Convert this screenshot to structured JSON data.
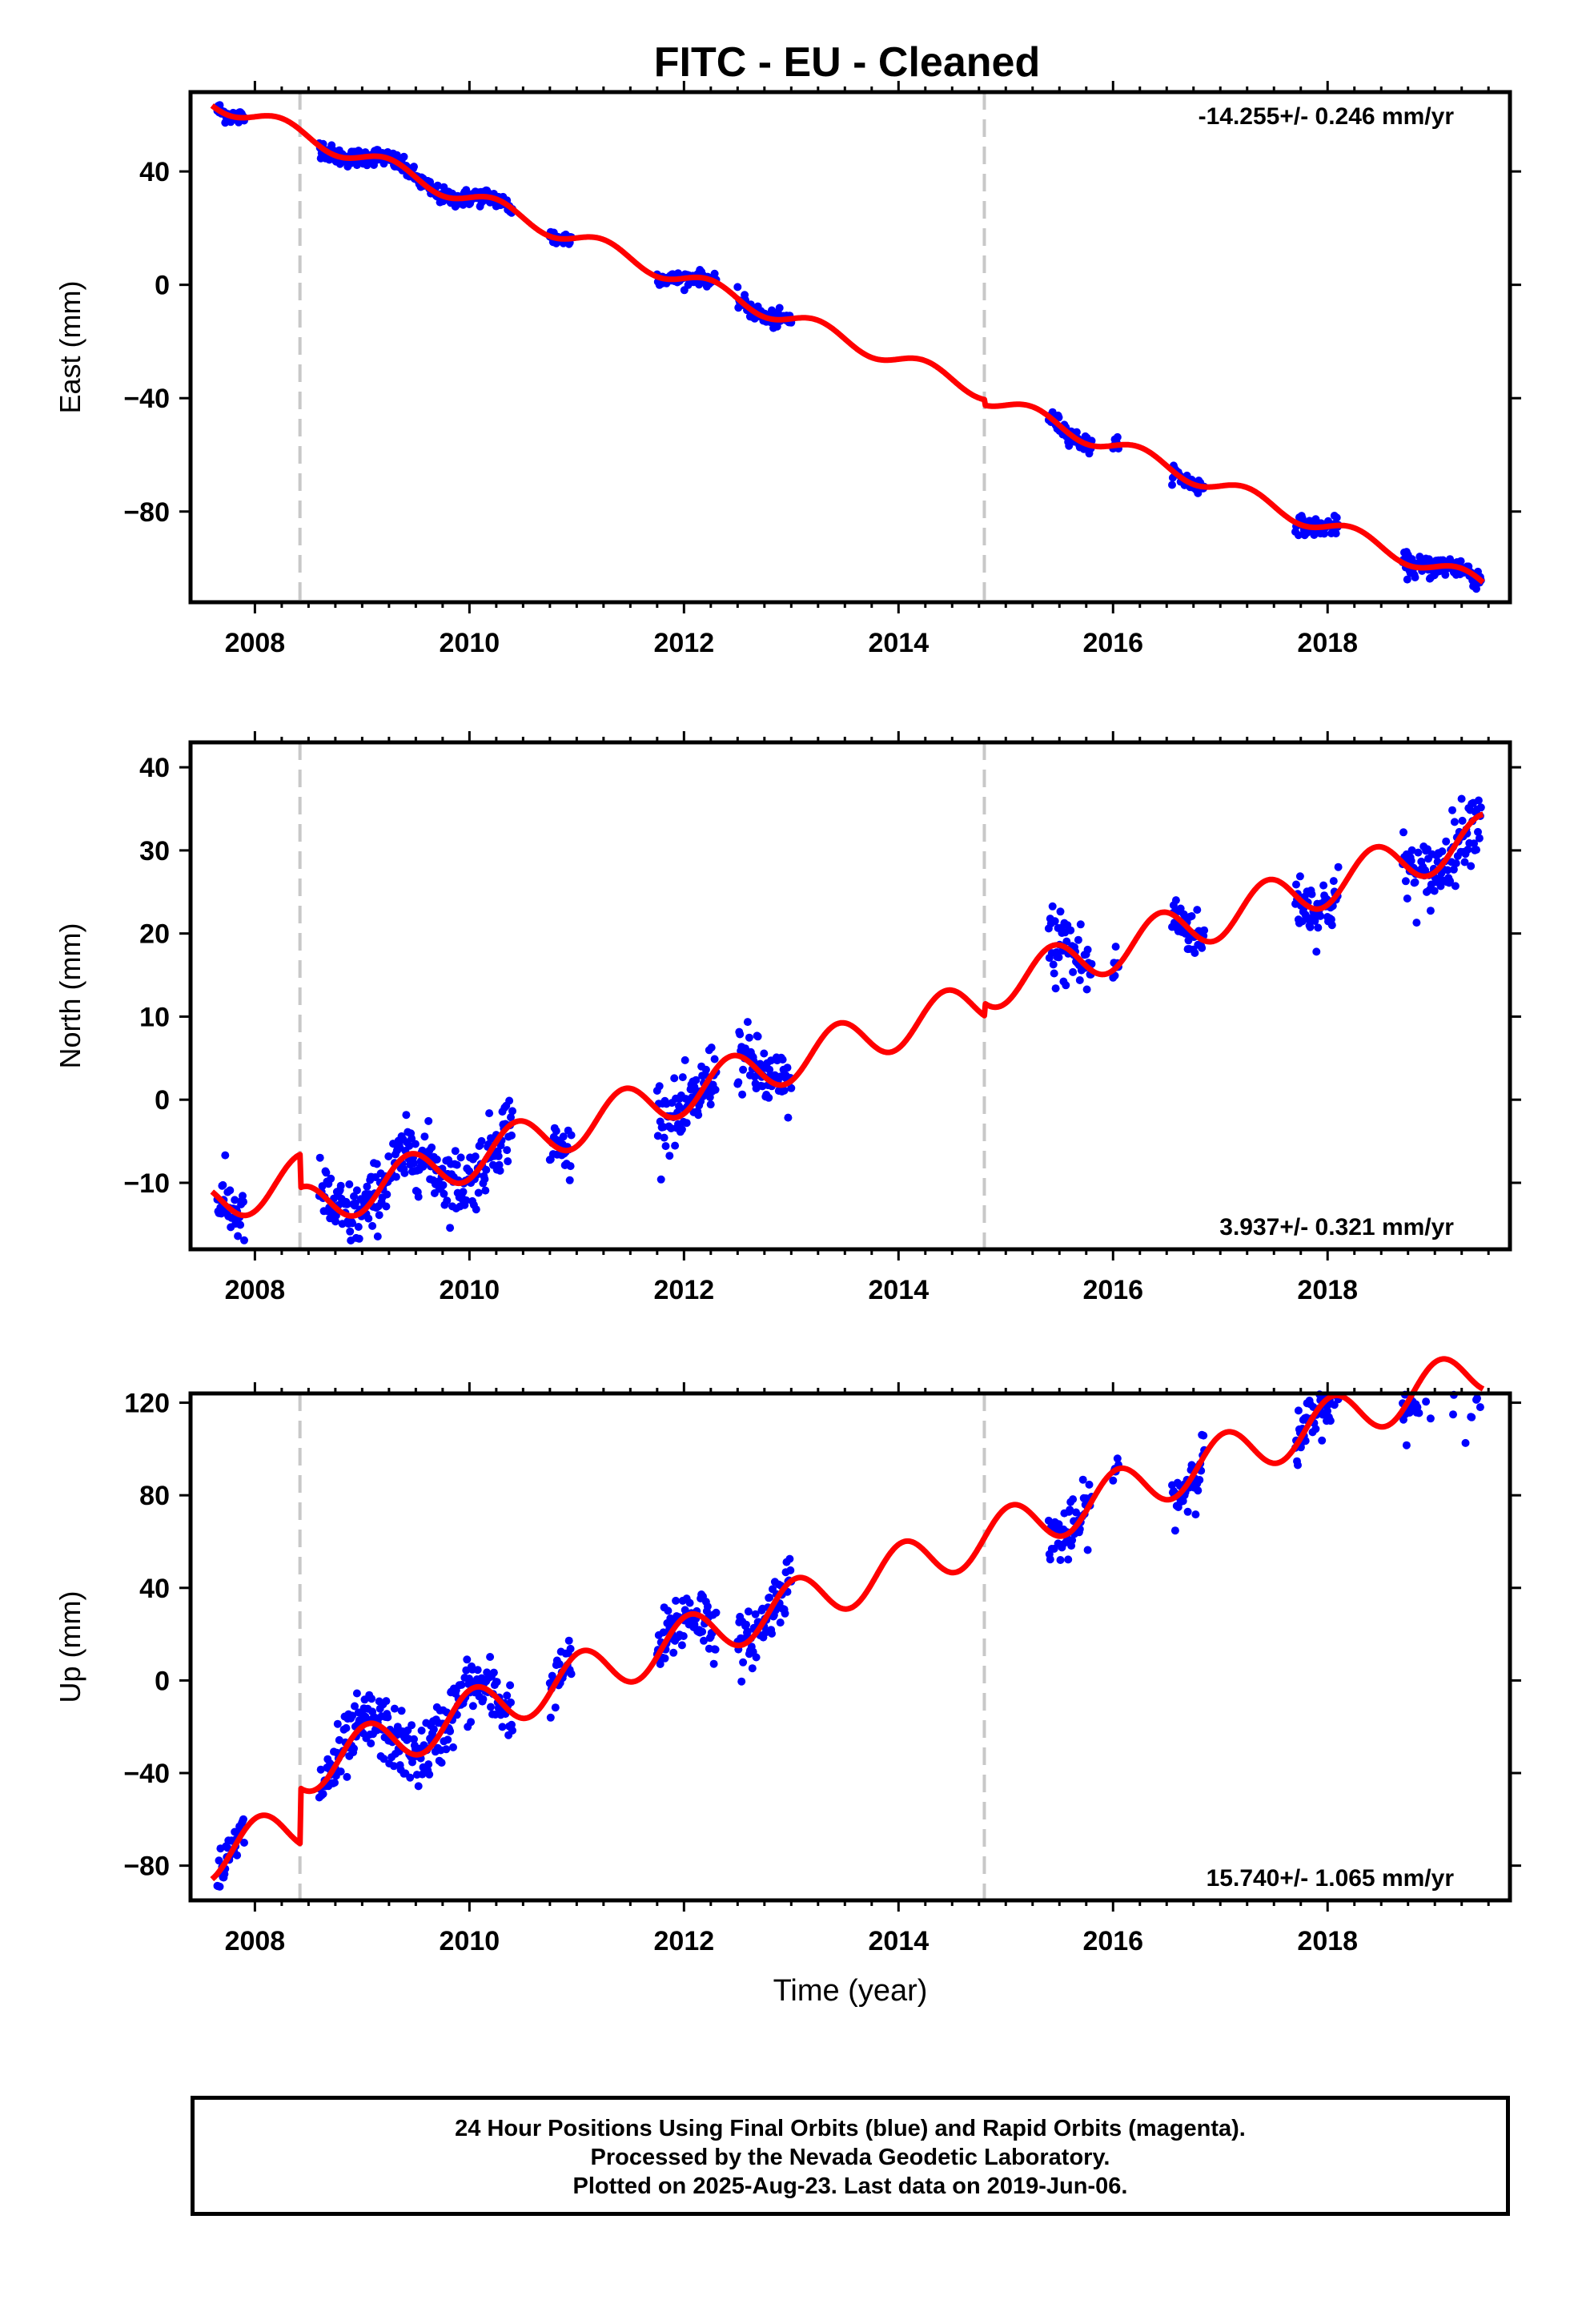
{
  "title": "FITC  - EU - Cleaned",
  "footer": {
    "line1": "24 Hour Positions Using Final Orbits (blue) and Rapid Orbits (magenta).",
    "line2": "Processed by the Nevada Geodetic Laboratory.",
    "line3": "Plotted on 2025-Aug-23. Last data on 2019-Jun-06."
  },
  "colors": {
    "data": "#0000ff",
    "model": "#ff0000",
    "break_line": "#c8c8c8"
  },
  "chart_data": [
    {
      "type": "scatter",
      "ylabel": "East (mm)",
      "xlim": [
        2007.4,
        2019.7
      ],
      "ylim": [
        -112,
        68
      ],
      "x_ticks": [
        2008,
        2010,
        2012,
        2014,
        2016,
        2018
      ],
      "y_ticks": [
        -80,
        -40,
        0,
        40
      ],
      "tick_labels_x": [
        "2008",
        "2010",
        "2012",
        "2014",
        "2016",
        "2018"
      ],
      "tick_labels_y": [
        "−80",
        "−40",
        "0",
        "40"
      ],
      "rate_label": "-14.255+/- 0.246 mm/yr",
      "rate_position": "top-right",
      "vertical_breaks": [
        2008.42,
        2014.8
      ],
      "model": {
        "offset": 65,
        "rate": -14.255,
        "t0": 2007.6,
        "amp_sin": 3.0,
        "amp_cos": 0.0,
        "steps": [
          {
            "t": 2008.42,
            "dy": 0
          },
          {
            "t": 2014.8,
            "dy": -2
          }
        ]
      },
      "data_segments": [
        {
          "start": 2007.65,
          "end": 2007.9,
          "noise": 1.5
        },
        {
          "start": 2008.6,
          "end": 2010.4,
          "noise": 1.5
        },
        {
          "start": 2010.75,
          "end": 2010.95,
          "noise": 1.5
        },
        {
          "start": 2011.75,
          "end": 2012.3,
          "noise": 1.2
        },
        {
          "start": 2012.5,
          "end": 2013.0,
          "noise": 1.5
        },
        {
          "start": 2015.4,
          "end": 2015.8,
          "noise": 1.5
        },
        {
          "start": 2016.0,
          "end": 2016.05,
          "noise": 1.2
        },
        {
          "start": 2016.55,
          "end": 2016.85,
          "noise": 1.5
        },
        {
          "start": 2017.7,
          "end": 2018.1,
          "noise": 1.5
        },
        {
          "start": 2018.7,
          "end": 2019.43,
          "noise": 2.0
        }
      ]
    },
    {
      "type": "scatter",
      "ylabel": "North (mm)",
      "xlim": [
        2007.4,
        2019.7
      ],
      "ylim": [
        -18,
        43
      ],
      "x_ticks": [
        2008,
        2010,
        2012,
        2014,
        2016,
        2018
      ],
      "y_ticks": [
        -10,
        0,
        10,
        20,
        30,
        40
      ],
      "tick_labels_x": [
        "2008",
        "2010",
        "2012",
        "2014",
        "2016",
        "2018"
      ],
      "tick_labels_y": [
        "−10",
        "0",
        "10",
        "20",
        "30",
        "40"
      ],
      "rate_label": "3.937+/- 0.321 mm/yr",
      "rate_position": "bottom-right",
      "vertical_breaks": [
        2008.42,
        2014.8
      ],
      "model": {
        "offset": -12.5,
        "rate": 3.937,
        "t0": 2007.6,
        "amp_sin": 1.0,
        "amp_cos": -2.5,
        "steps": [
          {
            "t": 2008.42,
            "dy": -4
          },
          {
            "t": 2014.8,
            "dy": 1.5
          }
        ]
      },
      "data_segments": [
        {
          "start": 2007.65,
          "end": 2007.9,
          "noise": 1.8
        },
        {
          "start": 2008.6,
          "end": 2010.4,
          "noise": 2.0
        },
        {
          "start": 2010.75,
          "end": 2010.95,
          "noise": 1.5
        },
        {
          "start": 2011.75,
          "end": 2012.3,
          "noise": 2.0
        },
        {
          "start": 2012.5,
          "end": 2013.0,
          "noise": 2.0
        },
        {
          "start": 2015.4,
          "end": 2015.8,
          "noise": 2.5
        },
        {
          "start": 2016.0,
          "end": 2016.05,
          "noise": 1.5
        },
        {
          "start": 2016.55,
          "end": 2016.85,
          "noise": 1.5
        },
        {
          "start": 2017.7,
          "end": 2018.1,
          "noise": 1.8
        },
        {
          "start": 2018.7,
          "end": 2019.43,
          "noise": 2.0
        }
      ]
    },
    {
      "type": "scatter",
      "ylabel": "Up (mm)",
      "xlim": [
        2007.4,
        2019.7
      ],
      "ylim": [
        -95,
        124
      ],
      "x_ticks": [
        2008,
        2010,
        2012,
        2014,
        2016,
        2018
      ],
      "y_ticks": [
        -80,
        -40,
        0,
        40,
        80,
        120
      ],
      "tick_labels_x": [
        "2008",
        "2010",
        "2012",
        "2014",
        "2016",
        "2018"
      ],
      "tick_labels_y": [
        "−80",
        "−40",
        "0",
        "40",
        "80",
        "120"
      ],
      "xlabel": "Time (year)",
      "rate_label": "15.740+/- 1.065 mm/yr",
      "rate_position": "bottom-right",
      "vertical_breaks": [
        2008.42,
        2014.8
      ],
      "model": {
        "offset": -76,
        "rate": 15.74,
        "t0": 2007.6,
        "amp_sin": 3.0,
        "amp_cos": 10.0,
        "steps": [
          {
            "t": 2008.42,
            "dy": 24
          },
          {
            "t": 2014.8,
            "dy": 0
          }
        ]
      },
      "data_segments": [
        {
          "start": 2007.65,
          "end": 2007.9,
          "noise": 5
        },
        {
          "start": 2008.6,
          "end": 2010.4,
          "noise": 7
        },
        {
          "start": 2010.75,
          "end": 2010.95,
          "noise": 5
        },
        {
          "start": 2011.75,
          "end": 2012.3,
          "noise": 7
        },
        {
          "start": 2012.5,
          "end": 2013.0,
          "noise": 6
        },
        {
          "start": 2015.4,
          "end": 2015.8,
          "noise": 6
        },
        {
          "start": 2016.0,
          "end": 2016.05,
          "noise": 3
        },
        {
          "start": 2016.55,
          "end": 2016.85,
          "noise": 6
        },
        {
          "start": 2017.7,
          "end": 2018.1,
          "noise": 6
        },
        {
          "start": 2018.7,
          "end": 2019.43,
          "noise": 8
        }
      ]
    }
  ]
}
